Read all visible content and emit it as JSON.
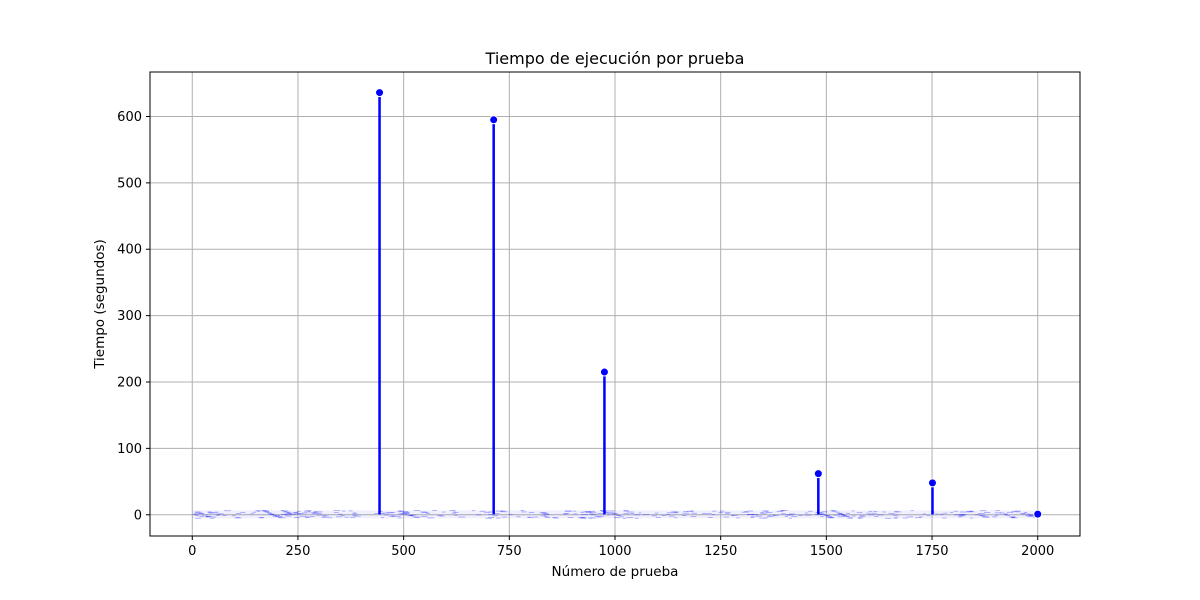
{
  "chart_data": {
    "type": "line",
    "title": "Tiempo de ejecución por prueba",
    "xlabel": "Número de prueba",
    "ylabel": "Tiempo (segundos)",
    "xlim": [
      -100,
      2100
    ],
    "ylim": [
      -32,
      667
    ],
    "xticks": [
      0,
      250,
      500,
      750,
      1000,
      1250,
      1500,
      1750,
      2000
    ],
    "yticks": [
      0,
      100,
      200,
      300,
      400,
      500,
      600
    ],
    "grid": true,
    "series_color": "#0000ff",
    "baseline_range": [
      0,
      2000
    ],
    "baseline_value": 0.5,
    "spikes": [
      {
        "x": 443,
        "y": 636
      },
      {
        "x": 713,
        "y": 595
      },
      {
        "x": 975,
        "y": 215
      },
      {
        "x": 1481,
        "y": 62
      },
      {
        "x": 1751,
        "y": 48
      },
      {
        "x": 2000,
        "y": 1
      }
    ]
  }
}
